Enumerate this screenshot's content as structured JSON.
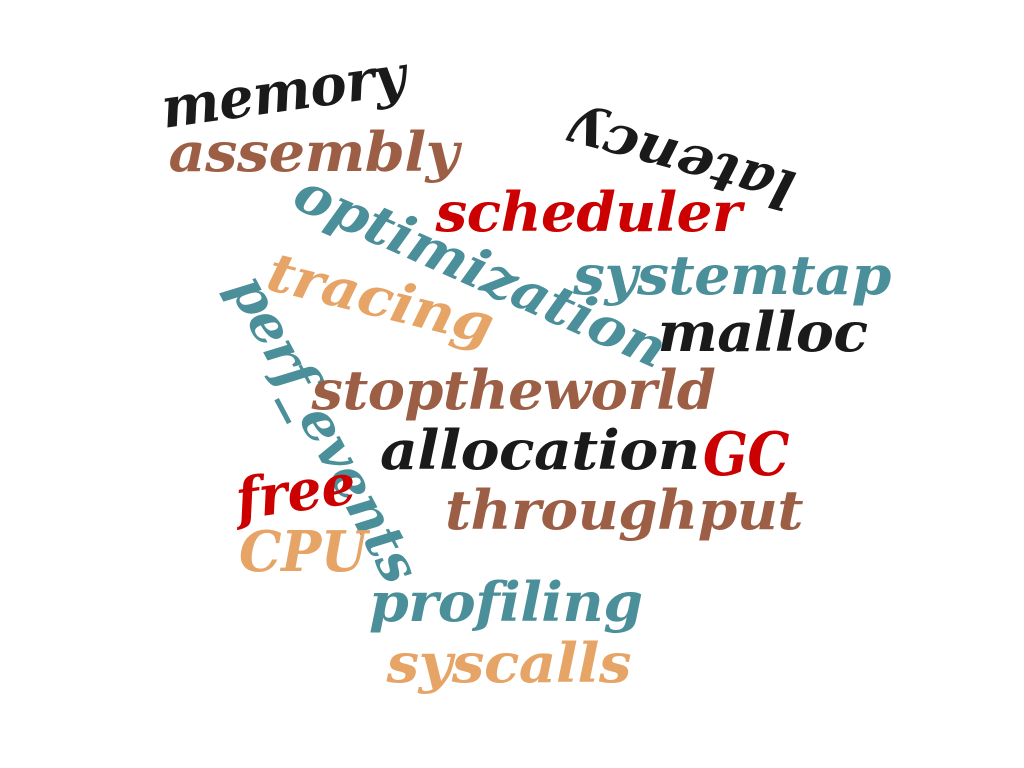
{
  "colors": {
    "background": "#ffffff",
    "black": "#1a1a1a",
    "brown": "#9c5f45",
    "red": "#cc0000",
    "teal": "#4a8f99",
    "orange": "#e6a566"
  },
  "words": [
    {
      "id": "memory",
      "text": "memory",
      "color": "#1a1a1a"
    },
    {
      "id": "assembly",
      "text": "assembly",
      "color": "#9c5f45"
    },
    {
      "id": "latency",
      "text": "latency",
      "color": "#1a1a1a"
    },
    {
      "id": "optimization",
      "text": "optimization",
      "color": "#4a8f99"
    },
    {
      "id": "scheduler",
      "text": "scheduler",
      "color": "#cc0000"
    },
    {
      "id": "tracing",
      "text": "tracing",
      "color": "#e6a566"
    },
    {
      "id": "systemtap",
      "text": "systemtap",
      "color": "#4a8f99"
    },
    {
      "id": "perf_events",
      "text": "perf_events",
      "color": "#4a8f99"
    },
    {
      "id": "malloc",
      "text": "malloc",
      "color": "#1a1a1a"
    },
    {
      "id": "stoptheworld",
      "text": "stoptheworld",
      "color": "#9c5f45"
    },
    {
      "id": "allocation",
      "text": "allocation",
      "color": "#1a1a1a"
    },
    {
      "id": "GC",
      "text": "GC",
      "color": "#cc0000"
    },
    {
      "id": "free",
      "text": "free",
      "color": "#cc0000"
    },
    {
      "id": "throughput",
      "text": "throughput",
      "color": "#9c5f45"
    },
    {
      "id": "CPU",
      "text": "CPU",
      "color": "#e6a566"
    },
    {
      "id": "profiling",
      "text": "profiling",
      "color": "#4a8f99"
    },
    {
      "id": "syscalls",
      "text": "syscalls",
      "color": "#e6a566"
    }
  ]
}
